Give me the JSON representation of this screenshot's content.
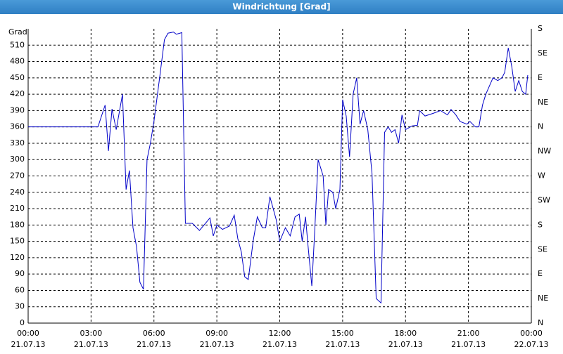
{
  "chart_data": {
    "type": "line",
    "title": "Windrichtung [Grad]",
    "y_label": "Grad",
    "xlim": [
      0,
      24
    ],
    "xticks": [
      {
        "value": 0,
        "label": [
          "00:00",
          "21.07.13"
        ]
      },
      {
        "value": 3,
        "label": [
          "03:00",
          "21.07.13"
        ]
      },
      {
        "value": 6,
        "label": [
          "06:00",
          "21.07.13"
        ]
      },
      {
        "value": 9,
        "label": [
          "09:00",
          "21.07.13"
        ]
      },
      {
        "value": 12,
        "label": [
          "12:00",
          "21.07.13"
        ]
      },
      {
        "value": 15,
        "label": [
          "15:00",
          "21.07.13"
        ]
      },
      {
        "value": 18,
        "label": [
          "18:00",
          "21.07.13"
        ]
      },
      {
        "value": 21,
        "label": [
          "21:00",
          "21.07.13"
        ]
      },
      {
        "value": 24,
        "label": [
          "00:00",
          "22.07.13"
        ]
      }
    ],
    "ylim": [
      0,
      540
    ],
    "yticks": [
      0,
      30,
      60,
      90,
      120,
      150,
      180,
      210,
      240,
      270,
      300,
      330,
      360,
      390,
      420,
      450,
      480,
      510
    ],
    "y2lim": [
      0,
      540
    ],
    "y2ticks": [
      {
        "value": 0,
        "label": "N"
      },
      {
        "value": 45,
        "label": "NE"
      },
      {
        "value": 90,
        "label": "E"
      },
      {
        "value": 135,
        "label": "SE"
      },
      {
        "value": 180,
        "label": "S"
      },
      {
        "value": 225,
        "label": "SW"
      },
      {
        "value": 270,
        "label": "W"
      },
      {
        "value": 315,
        "label": "NW"
      },
      {
        "value": 360,
        "label": "N"
      },
      {
        "value": 405,
        "label": "NE"
      },
      {
        "value": 450,
        "label": "E"
      },
      {
        "value": 495,
        "label": "SE"
      },
      {
        "value": 540,
        "label": "S"
      }
    ],
    "grid": true,
    "series": [
      {
        "color": "#0000c8",
        "x": [
          0,
          3.33,
          3.67,
          3.83,
          4.0,
          4.2,
          4.5,
          4.67,
          4.83,
          5.0,
          5.17,
          5.33,
          5.5,
          5.67,
          5.83,
          6.0,
          6.27,
          6.5,
          6.67,
          6.93,
          7.07,
          7.33,
          7.5,
          7.83,
          8.17,
          8.5,
          8.67,
          8.83,
          9.0,
          9.27,
          9.6,
          9.83,
          10.0,
          10.17,
          10.33,
          10.5,
          10.73,
          10.93,
          11.17,
          11.33,
          11.53,
          11.83,
          12.0,
          12.27,
          12.5,
          12.73,
          12.93,
          13.07,
          13.23,
          13.33,
          13.53,
          13.67,
          13.83,
          14.07,
          14.2,
          14.33,
          14.53,
          14.67,
          14.87,
          15.0,
          15.17,
          15.33,
          15.5,
          15.67,
          15.83,
          16.0,
          16.2,
          16.4,
          16.6,
          16.83,
          17.0,
          17.17,
          17.33,
          17.5,
          17.67,
          17.83,
          18.0,
          18.33,
          18.57,
          18.67,
          18.93,
          19.33,
          19.67,
          20.0,
          20.17,
          20.4,
          20.6,
          20.93,
          21.07,
          21.33,
          21.5,
          21.67,
          21.83,
          22.17,
          22.4,
          22.6,
          22.73,
          22.9,
          23.07,
          23.23,
          23.4,
          23.57,
          23.73,
          23.83
        ],
        "values": [
          360,
          360,
          400,
          316,
          393,
          355,
          420,
          245,
          280,
          175,
          140,
          75,
          62,
          300,
          330,
          370,
          450,
          520,
          532,
          534,
          530,
          533,
          183,
          183,
          170,
          185,
          193,
          160,
          180,
          172,
          178,
          198,
          155,
          130,
          85,
          80,
          150,
          195,
          175,
          175,
          232,
          190,
          150,
          175,
          160,
          195,
          200,
          150,
          195,
          150,
          68,
          170,
          300,
          270,
          180,
          245,
          240,
          210,
          245,
          410,
          380,
          305,
          420,
          450,
          365,
          390,
          355,
          275,
          45,
          37,
          350,
          360,
          350,
          355,
          330,
          382,
          355,
          362,
          363,
          390,
          380,
          385,
          390,
          382,
          392,
          382,
          370,
          365,
          370,
          360,
          360,
          400,
          420,
          450,
          445,
          450,
          460,
          505,
          470,
          425,
          445,
          425,
          420,
          455
        ]
      }
    ]
  }
}
